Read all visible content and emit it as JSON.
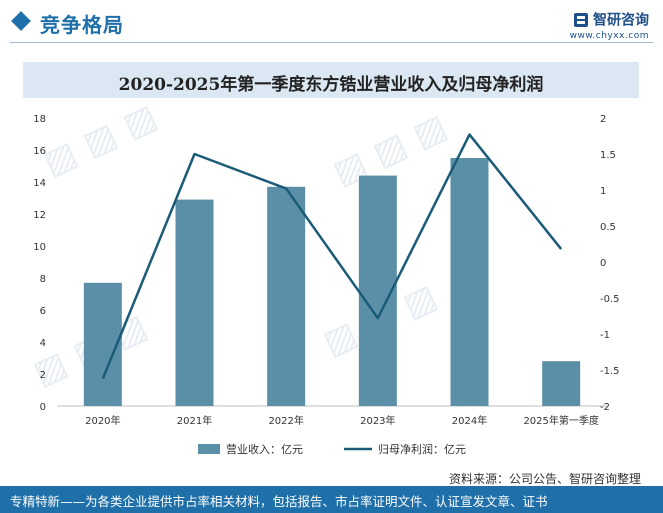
{
  "header": {
    "section_title": "竞争格局",
    "brand_name": "智研咨询",
    "brand_url": "www.chyxx.com"
  },
  "chart_title": "2020-2025年第一季度东方锆业营业收入及归母净利润",
  "source": "资料来源：公司公告、智研咨询整理",
  "footer": "专精特新——为各类企业提供市占率相关材料，包括报告、市占率证明文件、认证宣发文章、证书",
  "colors": {
    "bar": "#5b8fa8",
    "line": "#1a5c78",
    "accent": "#1f6fa8"
  },
  "chart_data": {
    "type": "bar+line",
    "categories": [
      "2020年",
      "2021年",
      "2022年",
      "2023年",
      "2024年",
      "2025年第一季度"
    ],
    "series": [
      {
        "name": "营业收入：亿元",
        "type": "bar",
        "axis": "left",
        "values": [
          7.7,
          12.9,
          13.7,
          14.4,
          15.5,
          2.8
        ]
      },
      {
        "name": "归母净利润：亿元",
        "type": "line",
        "axis": "right",
        "values": [
          -1.62,
          1.5,
          1.02,
          -0.78,
          1.77,
          0.18
        ]
      }
    ],
    "left_axis": {
      "min": 0,
      "max": 18,
      "ticks": [
        "0",
        "2",
        "4",
        "6",
        "8",
        "10",
        "12",
        "14",
        "16",
        "18"
      ]
    },
    "right_axis": {
      "min": -2,
      "max": 2,
      "ticks": [
        "-2",
        "-1.5",
        "-1",
        "-0.5",
        "0",
        "0.5",
        "1",
        "1.5",
        "2"
      ]
    },
    "legend_position": "bottom",
    "grid": false
  }
}
